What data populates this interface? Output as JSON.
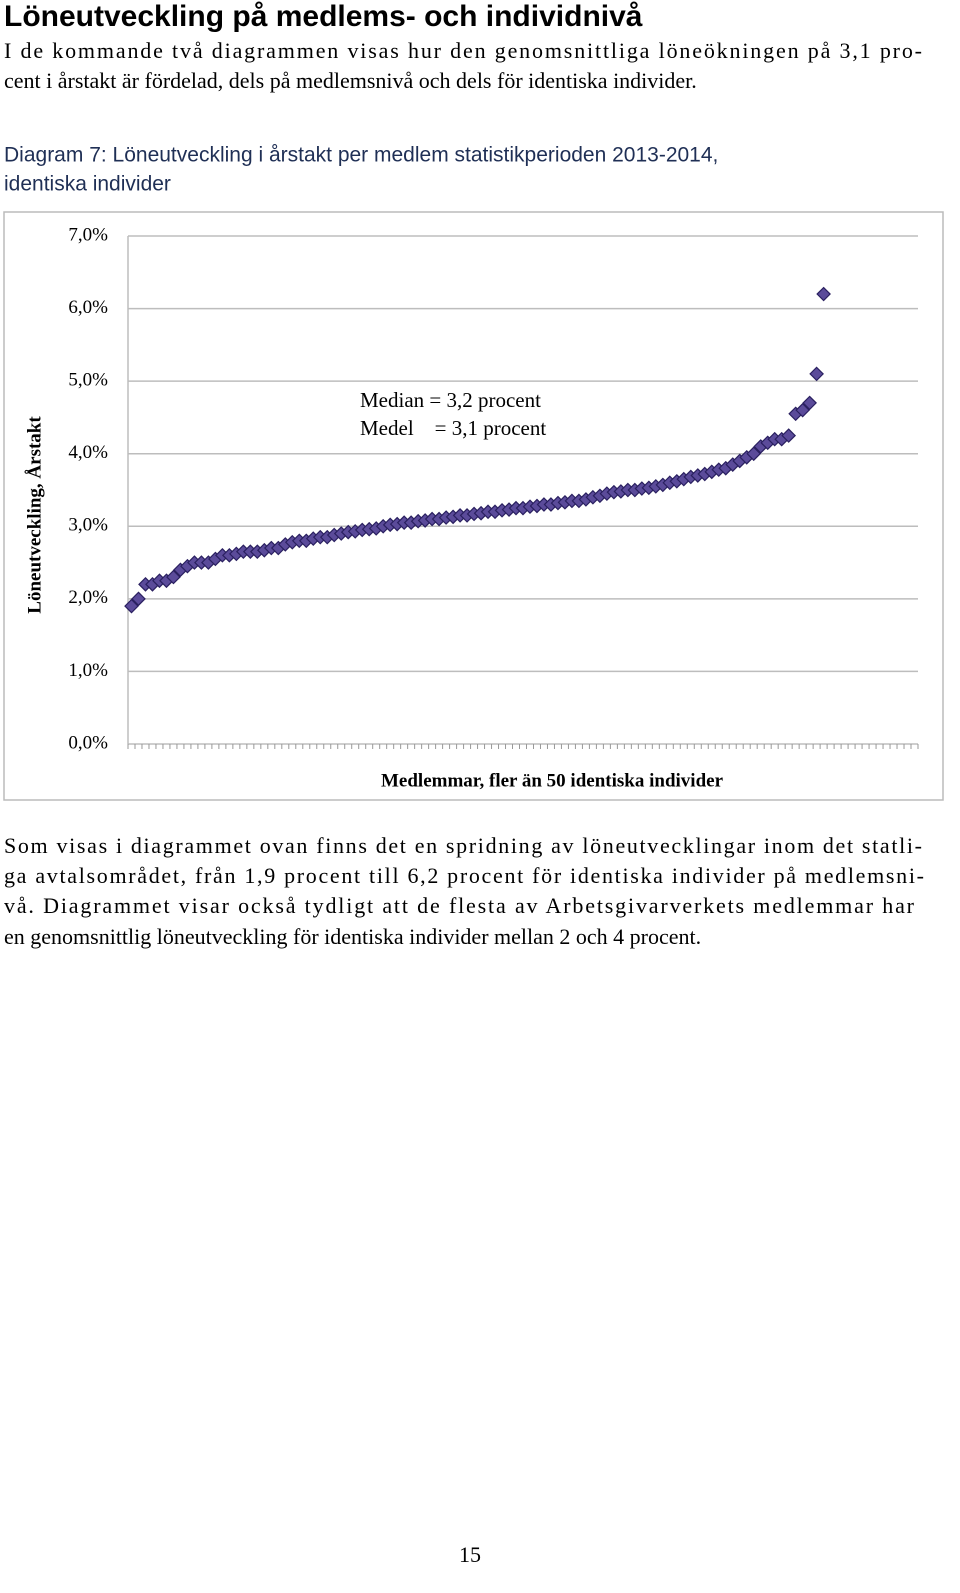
{
  "heading": "Löneutveckling på medlems- och individnivå",
  "intro": [
    "I de kommande två diagrammen visas hur den genomsnittliga löneökningen på 3,1 pro-",
    "cent i årstakt är fördelad, dels på medlemsnivå och dels för identiska individer."
  ],
  "chart_data": {
    "type": "scatter",
    "title": [
      "Diagram 7: Löneutveckling i årstakt per medlem statistikperioden 2013-2014,",
      "identiska individer"
    ],
    "y_label": "Löneutveckling, Årstakt",
    "x_label": "Medlemmar, fler än 50 identiska individer",
    "annotations": [
      "Median = 3,2 procent",
      "Medel    = 3,1 procent"
    ],
    "color": "#5b4b9a",
    "grid": true,
    "ylim": [
      0,
      7
    ],
    "yticks": [
      {
        "value": 0,
        "label": "0,0%"
      },
      {
        "value": 1,
        "label": "1,0%"
      },
      {
        "value": 2,
        "label": "2,0%"
      },
      {
        "value": 3,
        "label": "3,0%"
      },
      {
        "value": 4,
        "label": "4,0%"
      },
      {
        "value": 5,
        "label": "5,0%"
      },
      {
        "value": 6,
        "label": "6,0%"
      },
      {
        "value": 7,
        "label": "7,0%"
      }
    ],
    "categories": [
      null,
      null,
      null,
      null,
      null,
      null,
      null,
      null,
      null,
      null,
      null,
      null,
      null,
      null,
      null,
      null,
      null,
      null,
      null,
      null,
      null,
      null,
      null,
      null,
      null,
      null,
      null,
      null,
      null,
      null,
      null,
      null,
      null,
      null,
      null,
      null,
      null,
      null,
      null,
      null,
      null,
      null,
      null,
      null,
      null,
      null,
      null,
      null,
      null,
      null,
      null,
      null,
      null,
      null,
      null,
      null,
      null,
      null,
      null,
      null,
      null,
      null,
      null,
      null,
      null,
      null,
      null,
      null,
      null,
      null,
      null,
      null,
      null,
      null,
      null,
      null,
      null,
      null,
      null,
      null,
      null,
      null,
      null,
      null,
      null,
      null,
      null,
      null,
      null,
      null,
      null,
      null,
      null,
      null,
      null,
      null,
      null,
      null,
      null,
      null,
      null,
      null,
      null,
      null,
      null,
      null,
      null,
      null,
      null,
      null,
      null,
      null,
      null
    ],
    "values": [
      1.9,
      2.0,
      2.2,
      2.2,
      2.25,
      2.25,
      2.3,
      2.4,
      2.45,
      2.5,
      2.5,
      2.5,
      2.55,
      2.6,
      2.6,
      2.62,
      2.65,
      2.65,
      2.65,
      2.67,
      2.7,
      2.7,
      2.75,
      2.78,
      2.8,
      2.8,
      2.83,
      2.85,
      2.85,
      2.88,
      2.9,
      2.92,
      2.93,
      2.95,
      2.96,
      2.97,
      3.0,
      3.02,
      3.03,
      3.05,
      3.05,
      3.07,
      3.08,
      3.1,
      3.1,
      3.12,
      3.13,
      3.15,
      3.15,
      3.17,
      3.18,
      3.2,
      3.2,
      3.22,
      3.23,
      3.25,
      3.25,
      3.27,
      3.28,
      3.3,
      3.3,
      3.32,
      3.33,
      3.35,
      3.35,
      3.37,
      3.4,
      3.42,
      3.45,
      3.47,
      3.48,
      3.5,
      3.5,
      3.52,
      3.53,
      3.55,
      3.57,
      3.6,
      3.62,
      3.65,
      3.68,
      3.7,
      3.72,
      3.75,
      3.78,
      3.8,
      3.85,
      3.9,
      3.95,
      4.0,
      4.1,
      4.15,
      4.2,
      4.2,
      4.25,
      4.55,
      4.6,
      4.7,
      5.1,
      6.2,
      null,
      null,
      null,
      null,
      null,
      null,
      null,
      null,
      null,
      null,
      null,
      null,
      null
    ]
  },
  "body": [
    "Som visas i diagrammet ovan finns det en spridning av löneutvecklingar inom det statli-",
    "ga avtalsområdet, från 1,9 procent till 6,2 procent för identiska individer på medlemsni-",
    "vå. Diagrammet visar också tydligt att de flesta av Arbetsgivarverkets medlemmar har",
    "en genomsnittlig löneutveckling för identiska individer mellan 2 och 4 procent."
  ],
  "page_number": "15"
}
